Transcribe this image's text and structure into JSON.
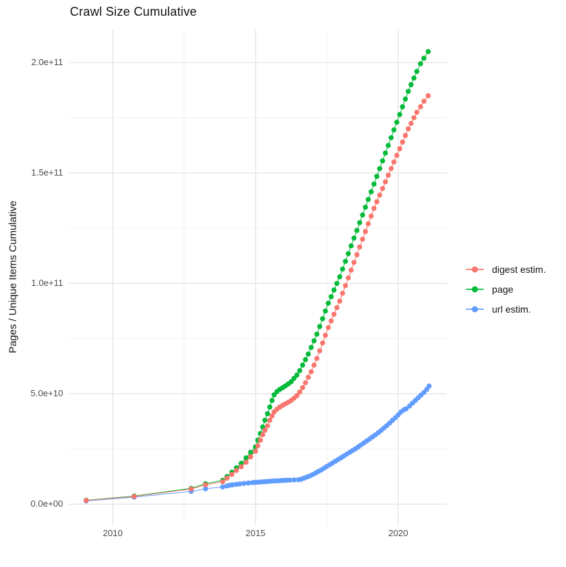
{
  "page": {
    "title": "Crawl Size Cumulative"
  },
  "chart_data": {
    "type": "scatter",
    "title": "Crawl Size Cumulative",
    "xlabel": "",
    "ylabel": "Pages / Unique Items Cumulative",
    "legend_position": "right",
    "grid": true,
    "x_unit": "year",
    "value_unit_multiplier": 1000000000.0,
    "xlim": [
      2008.45,
      2021.7
    ],
    "ylim_billions": [
      -9.5,
      215
    ],
    "x_ticks": [
      {
        "value": 2010,
        "label": "2010"
      },
      {
        "value": 2015,
        "label": "2015"
      },
      {
        "value": 2020,
        "label": "2020"
      }
    ],
    "x_minor_ticks": [
      2012.5,
      2017.5
    ],
    "y_ticks": [
      {
        "value": 0,
        "label": "0.0e+00"
      },
      {
        "value": 50,
        "label": "5.0e+10"
      },
      {
        "value": 100,
        "label": "1.0e+11"
      },
      {
        "value": 150,
        "label": "1.5e+11"
      },
      {
        "value": 200,
        "label": "2.0e+11"
      }
    ],
    "y_minor_ticks": [
      25,
      75,
      125,
      175
    ],
    "colors": {
      "digest_estim": "#F8766D",
      "page": "#00BA38",
      "url_estim": "#619CFF",
      "grid_major": "#E2E2E2",
      "grid_minor": "#F0F0F0",
      "axis_text": "#4D4D4D"
    },
    "series": [
      {
        "name": "digest estim.",
        "color": "#F8766D",
        "points": [
          [
            2009.07,
            1.7
          ],
          [
            2010.75,
            3.5
          ],
          [
            2012.75,
            6.9
          ],
          [
            2013.25,
            8.8
          ],
          [
            2013.85,
            10.2
          ],
          [
            2014.0,
            11.8
          ],
          [
            2014.17,
            13.5
          ],
          [
            2014.33,
            15.3
          ],
          [
            2014.5,
            17
          ],
          [
            2014.67,
            19
          ],
          [
            2014.83,
            21.5
          ],
          [
            2015.0,
            24
          ],
          [
            2015.08,
            26.5
          ],
          [
            2015.17,
            29
          ],
          [
            2015.25,
            31.5
          ],
          [
            2015.33,
            33.5
          ],
          [
            2015.42,
            35.5
          ],
          [
            2015.5,
            38
          ],
          [
            2015.58,
            40
          ],
          [
            2015.65,
            41.8
          ],
          [
            2015.75,
            43
          ],
          [
            2015.85,
            44
          ],
          [
            2015.95,
            44.8
          ],
          [
            2016.05,
            45.5
          ],
          [
            2016.15,
            46.2
          ],
          [
            2016.25,
            47
          ],
          [
            2016.35,
            48
          ],
          [
            2016.45,
            49.2
          ],
          [
            2016.55,
            50.8
          ],
          [
            2016.65,
            52.8
          ],
          [
            2016.75,
            55
          ],
          [
            2016.85,
            57.5
          ],
          [
            2016.95,
            60
          ],
          [
            2017.05,
            63
          ],
          [
            2017.15,
            66
          ],
          [
            2017.25,
            69.5
          ],
          [
            2017.35,
            73
          ],
          [
            2017.45,
            76.5
          ],
          [
            2017.55,
            80
          ],
          [
            2017.65,
            83
          ],
          [
            2017.75,
            86
          ],
          [
            2017.85,
            89
          ],
          [
            2017.95,
            92
          ],
          [
            2018.05,
            95.5
          ],
          [
            2018.15,
            99
          ],
          [
            2018.25,
            102.5
          ],
          [
            2018.35,
            106
          ],
          [
            2018.45,
            109.5
          ],
          [
            2018.55,
            113
          ],
          [
            2018.65,
            116.5
          ],
          [
            2018.75,
            120
          ],
          [
            2018.85,
            123.5
          ],
          [
            2018.95,
            127
          ],
          [
            2019.05,
            130.5
          ],
          [
            2019.15,
            134
          ],
          [
            2019.25,
            137
          ],
          [
            2019.35,
            140
          ],
          [
            2019.45,
            143
          ],
          [
            2019.55,
            146
          ],
          [
            2019.65,
            149
          ],
          [
            2019.75,
            152
          ],
          [
            2019.85,
            155
          ],
          [
            2019.95,
            158
          ],
          [
            2020.05,
            161
          ],
          [
            2020.15,
            164
          ],
          [
            2020.25,
            167
          ],
          [
            2020.35,
            170
          ],
          [
            2020.45,
            172.5
          ],
          [
            2020.55,
            175
          ],
          [
            2020.65,
            177.5
          ],
          [
            2020.78,
            180
          ],
          [
            2020.9,
            182.5
          ],
          [
            2021.05,
            185
          ]
        ]
      },
      {
        "name": "page",
        "color": "#00BA38",
        "points": [
          [
            2009.07,
            1.8
          ],
          [
            2010.75,
            3.7
          ],
          [
            2012.75,
            7.2
          ],
          [
            2013.25,
            9.3
          ],
          [
            2013.85,
            10.8
          ],
          [
            2014.0,
            12.5
          ],
          [
            2014.17,
            14.5
          ],
          [
            2014.33,
            16.5
          ],
          [
            2014.5,
            18.5
          ],
          [
            2014.67,
            21
          ],
          [
            2014.83,
            23.5
          ],
          [
            2015.0,
            26
          ],
          [
            2015.08,
            29
          ],
          [
            2015.17,
            32
          ],
          [
            2015.25,
            35
          ],
          [
            2015.33,
            38
          ],
          [
            2015.42,
            41
          ],
          [
            2015.5,
            44
          ],
          [
            2015.58,
            47
          ],
          [
            2015.65,
            49.5
          ],
          [
            2015.75,
            51
          ],
          [
            2015.85,
            52
          ],
          [
            2015.95,
            52.8
          ],
          [
            2016.05,
            53.6
          ],
          [
            2016.15,
            54.5
          ],
          [
            2016.25,
            55.5
          ],
          [
            2016.35,
            57
          ],
          [
            2016.45,
            58.5
          ],
          [
            2016.55,
            60.5
          ],
          [
            2016.65,
            63
          ],
          [
            2016.75,
            65.5
          ],
          [
            2016.85,
            68
          ],
          [
            2016.95,
            71
          ],
          [
            2017.05,
            74
          ],
          [
            2017.15,
            77
          ],
          [
            2017.25,
            80.5
          ],
          [
            2017.35,
            84
          ],
          [
            2017.45,
            87.5
          ],
          [
            2017.55,
            91
          ],
          [
            2017.65,
            94
          ],
          [
            2017.75,
            97
          ],
          [
            2017.85,
            100
          ],
          [
            2017.95,
            103
          ],
          [
            2018.05,
            106.5
          ],
          [
            2018.15,
            110
          ],
          [
            2018.25,
            113.5
          ],
          [
            2018.35,
            117
          ],
          [
            2018.45,
            120.5
          ],
          [
            2018.55,
            124
          ],
          [
            2018.65,
            127.5
          ],
          [
            2018.75,
            131
          ],
          [
            2018.85,
            134.5
          ],
          [
            2018.95,
            138
          ],
          [
            2019.05,
            141.5
          ],
          [
            2019.15,
            145
          ],
          [
            2019.25,
            148.5
          ],
          [
            2019.35,
            152
          ],
          [
            2019.45,
            155.5
          ],
          [
            2019.55,
            159
          ],
          [
            2019.65,
            162.5
          ],
          [
            2019.75,
            166
          ],
          [
            2019.85,
            169.5
          ],
          [
            2019.95,
            173
          ],
          [
            2020.05,
            176.5
          ],
          [
            2020.15,
            180
          ],
          [
            2020.25,
            183.5
          ],
          [
            2020.35,
            187
          ],
          [
            2020.45,
            190
          ],
          [
            2020.55,
            193
          ],
          [
            2020.65,
            196
          ],
          [
            2020.78,
            199.5
          ],
          [
            2020.9,
            202
          ],
          [
            2021.05,
            205
          ]
        ]
      },
      {
        "name": "url estim.",
        "color": "#619CFF",
        "points": [
          [
            2009.07,
            1.5
          ],
          [
            2010.75,
            3.2
          ],
          [
            2012.75,
            5.8
          ],
          [
            2013.25,
            7.0
          ],
          [
            2013.85,
            7.8
          ],
          [
            2014.0,
            8.3
          ],
          [
            2014.1,
            8.6
          ],
          [
            2014.2,
            8.8
          ],
          [
            2014.33,
            9.0
          ],
          [
            2014.45,
            9.2
          ],
          [
            2014.6,
            9.4
          ],
          [
            2014.75,
            9.6
          ],
          [
            2014.9,
            9.8
          ],
          [
            2015.0,
            9.9
          ],
          [
            2015.1,
            10.0
          ],
          [
            2015.2,
            10.1
          ],
          [
            2015.3,
            10.2
          ],
          [
            2015.4,
            10.3
          ],
          [
            2015.5,
            10.4
          ],
          [
            2015.6,
            10.5
          ],
          [
            2015.7,
            10.55
          ],
          [
            2015.8,
            10.6
          ],
          [
            2015.9,
            10.7
          ],
          [
            2016.0,
            10.8
          ],
          [
            2016.1,
            10.85
          ],
          [
            2016.2,
            10.9
          ],
          [
            2016.35,
            11.0
          ],
          [
            2016.5,
            11.1
          ],
          [
            2016.6,
            11.3
          ],
          [
            2016.7,
            11.8
          ],
          [
            2016.8,
            12.3
          ],
          [
            2016.9,
            12.8
          ],
          [
            2017.0,
            13.4
          ],
          [
            2017.1,
            14.1
          ],
          [
            2017.2,
            14.8
          ],
          [
            2017.3,
            15.5
          ],
          [
            2017.4,
            16.3
          ],
          [
            2017.5,
            17.1
          ],
          [
            2017.6,
            17.9
          ],
          [
            2017.7,
            18.7
          ],
          [
            2017.8,
            19.5
          ],
          [
            2017.9,
            20.3
          ],
          [
            2018.0,
            21.1
          ],
          [
            2018.1,
            21.9
          ],
          [
            2018.2,
            22.7
          ],
          [
            2018.3,
            23.5
          ],
          [
            2018.4,
            24.3
          ],
          [
            2018.5,
            25.1
          ],
          [
            2018.6,
            26
          ],
          [
            2018.7,
            26.9
          ],
          [
            2018.8,
            27.8
          ],
          [
            2018.9,
            28.7
          ],
          [
            2019.0,
            29.6
          ],
          [
            2019.1,
            30.5
          ],
          [
            2019.2,
            31.4
          ],
          [
            2019.3,
            32.4
          ],
          [
            2019.4,
            33.4
          ],
          [
            2019.5,
            34.5
          ],
          [
            2019.6,
            35.6
          ],
          [
            2019.7,
            36.8
          ],
          [
            2019.8,
            38
          ],
          [
            2019.9,
            39.2
          ],
          [
            2020.0,
            40.5
          ],
          [
            2020.1,
            41.8
          ],
          [
            2020.2,
            42.8
          ],
          [
            2020.28,
            43.2
          ],
          [
            2020.4,
            44.5
          ],
          [
            2020.5,
            45.8
          ],
          [
            2020.6,
            47
          ],
          [
            2020.7,
            48.2
          ],
          [
            2020.8,
            49.4
          ],
          [
            2020.9,
            50.6
          ],
          [
            2021.0,
            52
          ],
          [
            2021.08,
            53.5
          ]
        ]
      }
    ]
  }
}
